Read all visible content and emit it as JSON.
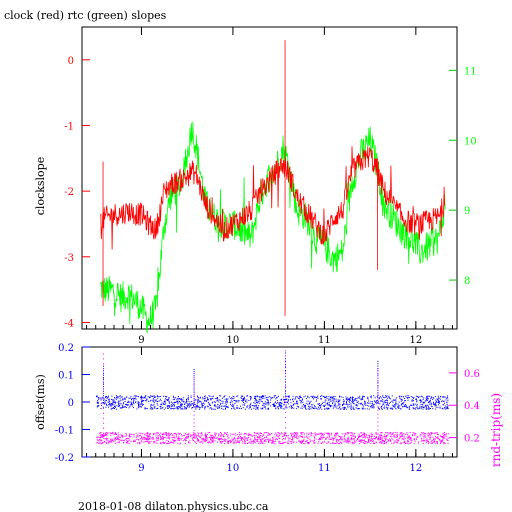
{
  "title": "clock (red) rtc (green) slopes",
  "footer": "2018-01-08 dilaton.physics.ubc.ca",
  "colors": {
    "clock": "#ff0000",
    "rtc": "#00ff00",
    "offset": "#0000ff",
    "rndtrip": "#ff00ff",
    "frame": "#000000"
  },
  "chart_data": [
    {
      "type": "line",
      "title": "clock (red) rtc (green) slopes",
      "ylabel": "clockslope",
      "y2label": "",
      "xlim": [
        8.35,
        12.45
      ],
      "ylim": [
        -4.1,
        0.5
      ],
      "y2lim": [
        7.3,
        11.62
      ],
      "xticks": [
        9,
        10,
        11,
        12
      ],
      "yticks": [
        -4,
        -3,
        -2,
        -1,
        0
      ],
      "y2ticks": [
        8,
        9,
        10,
        11
      ],
      "series": [
        {
          "color": "#00ff00",
          "axis": "right",
          "x": [
            8.55,
            8.62,
            8.7,
            8.78,
            8.86,
            8.94,
            9.0,
            9.08,
            9.16,
            9.25,
            9.32,
            9.4,
            9.48,
            9.55,
            9.6,
            9.7,
            9.8,
            9.9,
            10.0,
            10.1,
            10.2,
            10.3,
            10.4,
            10.5,
            10.55,
            10.62,
            10.7,
            10.8,
            10.9,
            11.0,
            11.1,
            11.2,
            11.3,
            11.4,
            11.5,
            11.58,
            11.65,
            11.75,
            11.85,
            11.95,
            12.05,
            12.15,
            12.25,
            12.32
          ],
          "y": [
            7.9,
            7.85,
            7.85,
            7.75,
            7.8,
            7.7,
            7.6,
            7.4,
            7.6,
            8.8,
            9.2,
            9.3,
            9.6,
            10.2,
            9.9,
            9.1,
            8.9,
            8.8,
            8.8,
            8.7,
            8.6,
            9.2,
            9.5,
            9.7,
            9.9,
            9.6,
            9.0,
            8.9,
            8.6,
            8.5,
            8.3,
            8.4,
            9.4,
            9.8,
            10.0,
            9.6,
            9.1,
            8.9,
            8.7,
            8.6,
            8.4,
            8.5,
            8.6,
            9.1
          ]
        },
        {
          "color": "#ff0000",
          "axis": "left",
          "x": [
            8.55,
            8.62,
            8.7,
            8.78,
            8.86,
            8.94,
            9.0,
            9.08,
            9.16,
            9.25,
            9.32,
            9.4,
            9.48,
            9.55,
            9.6,
            9.7,
            9.8,
            9.9,
            10.0,
            10.1,
            10.2,
            10.3,
            10.4,
            10.5,
            10.55,
            10.62,
            10.7,
            10.8,
            10.9,
            11.0,
            11.1,
            11.2,
            11.3,
            11.4,
            11.5,
            11.58,
            11.65,
            11.75,
            11.85,
            11.95,
            12.05,
            12.15,
            12.25,
            12.32
          ],
          "y": [
            -2.45,
            -2.4,
            -2.35,
            -2.35,
            -2.3,
            -2.35,
            -2.35,
            -2.5,
            -2.6,
            -2.0,
            -1.9,
            -1.85,
            -1.8,
            -1.7,
            -1.75,
            -2.2,
            -2.4,
            -2.6,
            -2.5,
            -2.4,
            -2.3,
            -2.0,
            -1.85,
            -1.65,
            -1.6,
            -1.75,
            -2.1,
            -2.3,
            -2.5,
            -2.7,
            -2.4,
            -2.3,
            -1.7,
            -1.55,
            -1.45,
            -1.7,
            -2.0,
            -2.2,
            -2.4,
            -2.5,
            -2.5,
            -2.45,
            -2.4,
            -2.15
          ]
        }
      ]
    },
    {
      "type": "scatter",
      "ylabel": "offset(ms)",
      "y2label": "rnd-trip(ms)",
      "xlim": [
        8.35,
        12.45
      ],
      "ylim": [
        -0.2,
        0.2
      ],
      "y2lim": [
        0.08,
        0.76
      ],
      "xticks": [
        9,
        10,
        11,
        12
      ],
      "yticks": [
        -0.2,
        -0.1,
        0,
        0.1,
        0.2
      ],
      "ytick_labels": [
        "-0.2",
        "-0.1",
        "0",
        "0.1",
        "0.2"
      ],
      "y2ticks": [
        0.2,
        0.4,
        0.6
      ],
      "y2tick_labels": [
        "0.2",
        "0.4",
        "0.6"
      ],
      "series": [
        {
          "color": "#0000ff",
          "axis": "left",
          "center": 0.0,
          "spread": 0.025,
          "x_range": [
            8.5,
            12.35
          ],
          "spikes": [
            [
              8.58,
              0.14
            ],
            [
              9.57,
              0.12
            ],
            [
              10.57,
              0.18
            ],
            [
              11.58,
              0.15
            ]
          ]
        },
        {
          "color": "#ff00ff",
          "axis": "right",
          "center": 0.2,
          "spread": 0.035,
          "x_range": [
            8.5,
            12.35
          ],
          "spikes": [
            [
              8.58,
              0.72
            ],
            [
              9.57,
              0.6
            ],
            [
              10.57,
              0.74
            ],
            [
              11.58,
              0.62
            ]
          ]
        }
      ]
    }
  ]
}
